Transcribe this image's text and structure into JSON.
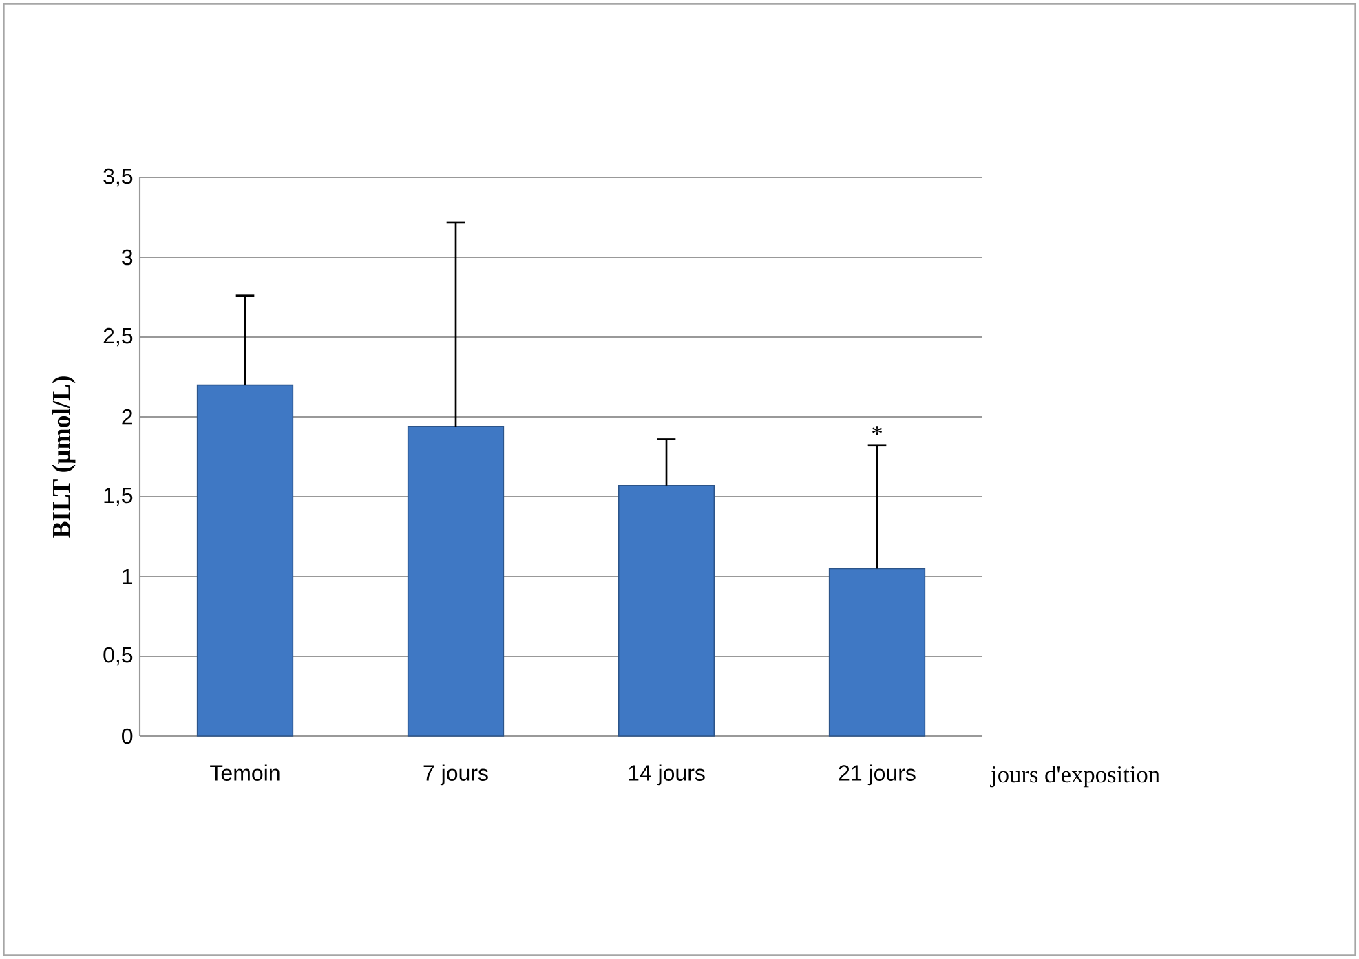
{
  "chart_data": {
    "type": "bar",
    "ylabel": "BILT (µmol/L)",
    "xlabel": "jours d'exposition",
    "categories": [
      "Temoin",
      "7 jours",
      "14 jours",
      "21 jours"
    ],
    "values": [
      2.2,
      1.94,
      1.57,
      1.05
    ],
    "errors": [
      [
        2.2,
        2.76
      ],
      [
        1.94,
        3.22
      ],
      [
        1.57,
        1.86
      ],
      [
        1.05,
        1.82
      ]
    ],
    "color": "#3f78c4",
    "ylim": [
      0,
      3.5
    ],
    "yticks": [
      {
        "value": 0,
        "label": "0"
      },
      {
        "value": 0.5,
        "label": "0,5"
      },
      {
        "value": 1,
        "label": "1"
      },
      {
        "value": 1.5,
        "label": "1,5"
      },
      {
        "value": 2,
        "label": "2"
      },
      {
        "value": 2.5,
        "label": "2,5"
      },
      {
        "value": 3,
        "label": "3"
      },
      {
        "value": 3.5,
        "label": "3,5"
      }
    ],
    "grid": "y",
    "annotations": [
      {
        "text": "*",
        "x": "21 jours",
        "y": 1.82
      }
    ]
  }
}
